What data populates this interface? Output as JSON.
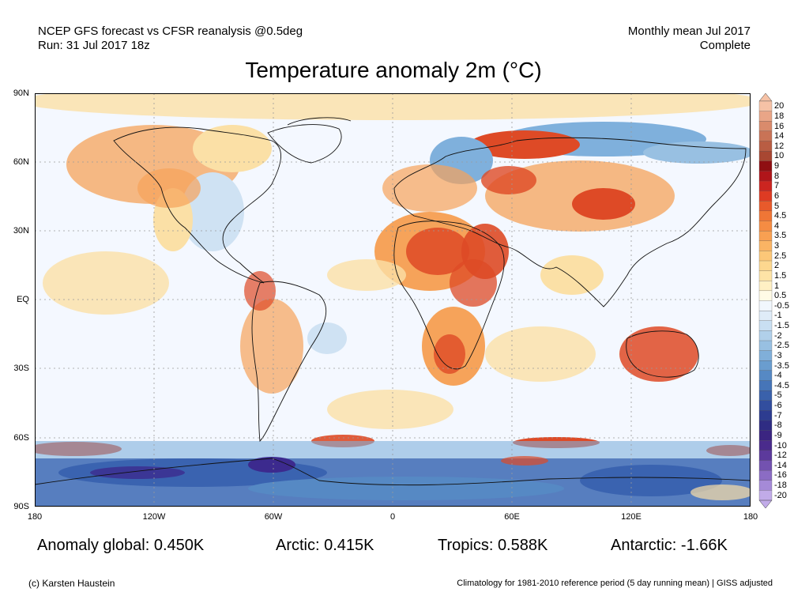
{
  "header": {
    "line1": "NCEP GFS forecast vs CFSR reanalysis @0.5deg",
    "line2": "Run: 31 Jul 2017 18z",
    "right1": "Monthly mean Jul 2017",
    "right2": "Complete"
  },
  "title": "Temperature anomaly 2m (°C)",
  "map": {
    "lat_labels": [
      "90N",
      "60N",
      "30N",
      "EQ",
      "30S",
      "60S",
      "90S"
    ],
    "lon_labels": [
      "180",
      "120W",
      "60W",
      "0",
      "60E",
      "120E",
      "180"
    ],
    "colors": {
      "neutral": "#f4f8ff",
      "warm_light": "#fbe0a6",
      "warm_mid": "#f6a35a",
      "warm_strong": "#de4a26",
      "warm_deep": "#b1141b",
      "cool_light": "#cfe2f3",
      "cool_mid": "#7fb0dc",
      "cool_strong": "#3a63b0",
      "cool_deep": "#3c2a8e"
    }
  },
  "colorbar": {
    "labels": [
      "20",
      "18",
      "16",
      "14",
      "12",
      "10",
      "9",
      "8",
      "7",
      "6",
      "5",
      "4.5",
      "4",
      "3.5",
      "3",
      "2.5",
      "2",
      "1.5",
      "1",
      "0.5",
      "-0.5",
      "-1",
      "-1.5",
      "-2",
      "-2.5",
      "-3",
      "-3.5",
      "-4",
      "-4.5",
      "-5",
      "-6",
      "-7",
      "-8",
      "-9",
      "-10",
      "-12",
      "-14",
      "-16",
      "-18",
      "-20"
    ],
    "colors": [
      "#f6c2a6",
      "#e9a587",
      "#d98b6c",
      "#c97356",
      "#b95d43",
      "#a84732",
      "#8f0f12",
      "#b0151a",
      "#cc2520",
      "#de3b23",
      "#e85a2b",
      "#ef7636",
      "#f58c43",
      "#f8a052",
      "#fab464",
      "#fcc778",
      "#fdd78f",
      "#fee3a6",
      "#fff0c4",
      "#fffbe6",
      "#f1f7fd",
      "#dfecf8",
      "#c9dff2",
      "#b1d0ea",
      "#98c0e2",
      "#80afd9",
      "#6a9dcf",
      "#5689c4",
      "#4675b8",
      "#3a61ab",
      "#324e9e",
      "#2d3c90",
      "#2f2c83",
      "#3b2581",
      "#4a2b8c",
      "#5c3a9c",
      "#7352b0",
      "#8b6cc4",
      "#a58ad7",
      "#c1abe8"
    ]
  },
  "stats": {
    "global": "Anomaly global: 0.450K",
    "arctic": "Arctic: 0.415K",
    "tropics": "Tropics: 0.588K",
    "antarctic": "Antarctic: -1.66K"
  },
  "footer": {
    "left": "(c) Karsten Haustein",
    "right": "Climatology for 1981-2010 reference period (5 day running mean) | GISS adjusted"
  }
}
